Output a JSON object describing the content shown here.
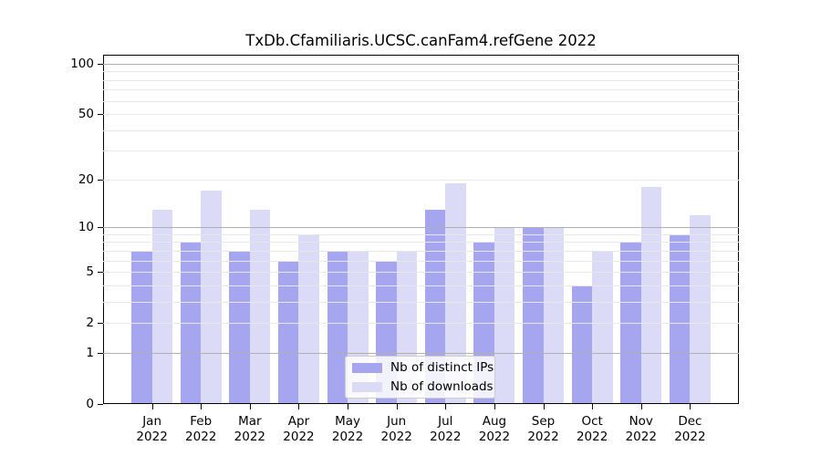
{
  "chart_data": {
    "type": "bar",
    "title": "TxDb.Cfamiliaris.UCSC.canFam4.refGene 2022",
    "y_scale": "log1p",
    "ylim": [
      0,
      113
    ],
    "grid": true,
    "legend_position": "lower center",
    "yticks": [
      0,
      1,
      2,
      5,
      10,
      20,
      50,
      100
    ],
    "major_gridlines": [
      1,
      10,
      100
    ],
    "minor_gridlines": [
      2,
      3,
      4,
      5,
      6,
      7,
      8,
      9,
      20,
      30,
      40,
      50,
      60,
      70,
      80,
      90
    ],
    "categories": [
      {
        "month": "Jan",
        "year": "2022"
      },
      {
        "month": "Feb",
        "year": "2022"
      },
      {
        "month": "Mar",
        "year": "2022"
      },
      {
        "month": "Apr",
        "year": "2022"
      },
      {
        "month": "May",
        "year": "2022"
      },
      {
        "month": "Jun",
        "year": "2022"
      },
      {
        "month": "Jul",
        "year": "2022"
      },
      {
        "month": "Aug",
        "year": "2022"
      },
      {
        "month": "Sep",
        "year": "2022"
      },
      {
        "month": "Oct",
        "year": "2022"
      },
      {
        "month": "Nov",
        "year": "2022"
      },
      {
        "month": "Dec",
        "year": "2022"
      }
    ],
    "series": [
      {
        "name": "Nb of distinct IPs",
        "color": "#a5a5f0",
        "values": [
          7,
          8,
          7,
          6,
          7,
          6,
          13,
          8,
          10,
          4,
          8,
          9
        ]
      },
      {
        "name": "Nb of downloads",
        "color": "#dbdbf8",
        "values": [
          13,
          17,
          13,
          9,
          7,
          7,
          19,
          10,
          10,
          7,
          18,
          12
        ]
      }
    ]
  },
  "colors": {
    "background": "#ffffff",
    "axis": "#000000",
    "text": "#000000",
    "major_grid": "#b0b0b0",
    "minor_grid": "#e8e8e8",
    "legend_border": "#cccccc"
  }
}
